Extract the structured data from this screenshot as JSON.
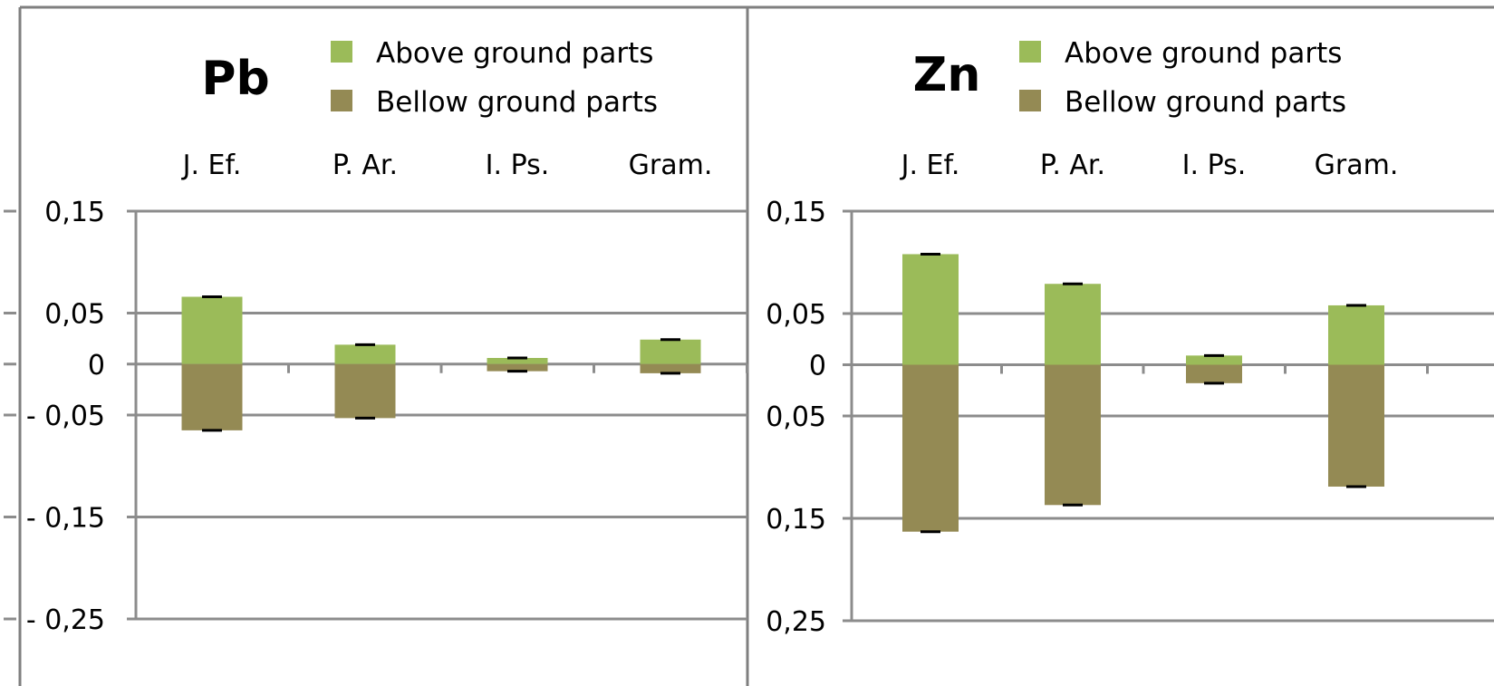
{
  "chart_data": [
    {
      "type": "bar",
      "title": "Pb",
      "categories": [
        "J. Ef.",
        "P. Ar.",
        "I. Ps.",
        "Gram."
      ],
      "y_tick_labels": [
        "0,15",
        "0,05",
        "0",
        "- 0,05",
        "- 0,15",
        "- 0,25"
      ],
      "y_tick_values": [
        0.15,
        0.05,
        0,
        -0.05,
        -0.15,
        -0.25
      ],
      "ylim": [
        -0.25,
        0.15
      ],
      "grid": true,
      "legend_position": "top",
      "series": [
        {
          "name": "Above ground parts",
          "color": "#9BBB59",
          "values": [
            0.066,
            0.019,
            0.006,
            0.024
          ]
        },
        {
          "name": "Bellow ground parts",
          "color": "#948A54",
          "values": [
            -0.065,
            -0.053,
            -0.007,
            -0.009
          ]
        }
      ]
    },
    {
      "type": "bar",
      "title": "Zn",
      "categories": [
        "J. Ef.",
        "P. Ar.",
        "I. Ps.",
        "Gram."
      ],
      "y_tick_labels": [
        "0,15",
        "0,05",
        "0",
        "0,05",
        "0,15",
        "0,25"
      ],
      "y_tick_values": [
        0.15,
        0.05,
        0,
        -0.05,
        -0.15,
        -0.25
      ],
      "ylim": [
        -0.25,
        0.15
      ],
      "grid": true,
      "legend_position": "top",
      "series": [
        {
          "name": "Above ground parts",
          "color": "#9BBB59",
          "values": [
            0.108,
            0.079,
            0.009,
            0.058
          ]
        },
        {
          "name": "Bellow ground parts",
          "color": "#948A54",
          "values": [
            -0.163,
            -0.137,
            -0.018,
            -0.119
          ]
        }
      ]
    }
  ]
}
